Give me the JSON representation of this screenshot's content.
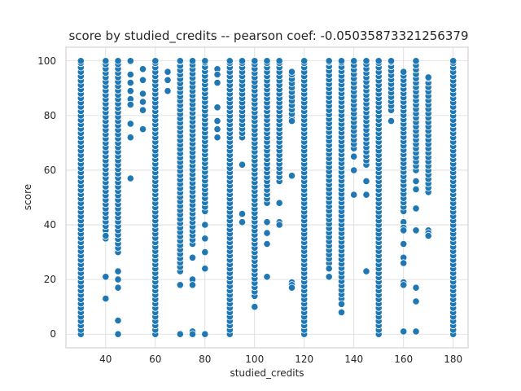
{
  "chart_data": {
    "type": "scatter",
    "title": "score by studied_credits -- pearson coef: -0.05035873321256379",
    "xlabel": "studied_credits",
    "ylabel": "score",
    "xlim": [
      24,
      186
    ],
    "ylim": [
      -5,
      105
    ],
    "xticks": [
      40,
      60,
      80,
      100,
      120,
      140,
      160,
      180
    ],
    "yticks": [
      0,
      20,
      40,
      60,
      80,
      100
    ],
    "grid": true,
    "point_color": "#1f77b4",
    "columns": [
      {
        "x": 30,
        "dense": [
          [
            0,
            100
          ]
        ]
      },
      {
        "x": 40,
        "dense": [
          [
            38,
            100
          ]
        ],
        "points": [
          35,
          36,
          21,
          13
        ]
      },
      {
        "x": 45,
        "dense": [
          [
            30,
            100
          ]
        ],
        "points": [
          23,
          20,
          17,
          5,
          0
        ]
      },
      {
        "x": 50,
        "points": [
          100,
          95,
          92,
          89,
          86,
          84,
          77,
          72,
          57
        ]
      },
      {
        "x": 55,
        "points": [
          97,
          93,
          88,
          85,
          82,
          75
        ]
      },
      {
        "x": 60,
        "dense": [
          [
            0,
            100
          ]
        ]
      },
      {
        "x": 65,
        "points": [
          96,
          93,
          89
        ]
      },
      {
        "x": 70,
        "dense": [
          [
            23,
            100
          ]
        ],
        "points": [
          18,
          0
        ]
      },
      {
        "x": 75,
        "dense": [
          [
            33,
            100
          ]
        ],
        "points": [
          28,
          20,
          18,
          1,
          0
        ]
      },
      {
        "x": 80,
        "dense": [
          [
            45,
            100
          ]
        ],
        "points": [
          40,
          35,
          30,
          24,
          0
        ]
      },
      {
        "x": 85,
        "points": [
          97,
          95,
          92,
          83,
          78,
          75,
          72
        ]
      },
      {
        "x": 90,
        "dense": [
          [
            0,
            100
          ]
        ]
      },
      {
        "x": 95,
        "dense": [
          [
            72,
            100
          ]
        ],
        "points": [
          62,
          44,
          41
        ]
      },
      {
        "x": 100,
        "dense": [
          [
            14,
            100
          ]
        ],
        "points": [
          10
        ]
      },
      {
        "x": 105,
        "dense": [
          [
            48,
            100
          ]
        ],
        "points": [
          41,
          37,
          33,
          21
        ]
      },
      {
        "x": 110,
        "dense": [
          [
            56,
            100
          ]
        ],
        "points": [
          48,
          41,
          40
        ]
      },
      {
        "x": 115,
        "dense": [
          [
            79,
            96
          ]
        ],
        "points": [
          78,
          58,
          19,
          18,
          17
        ]
      },
      {
        "x": 120,
        "dense": [
          [
            0,
            100
          ]
        ]
      },
      {
        "x": 130,
        "dense": [
          [
            26,
            100
          ]
        ],
        "points": [
          24,
          21
        ]
      },
      {
        "x": 135,
        "dense": [
          [
            13,
            100
          ]
        ],
        "points": [
          11,
          8
        ]
      },
      {
        "x": 140,
        "dense": [
          [
            68,
            100
          ]
        ],
        "points": [
          65,
          60,
          51
        ]
      },
      {
        "x": 145,
        "dense": [
          [
            62,
            100
          ]
        ],
        "points": [
          56,
          51,
          23
        ]
      },
      {
        "x": 150,
        "dense": [
          [
            0,
            100
          ]
        ]
      },
      {
        "x": 155,
        "dense": [
          [
            82,
            100
          ]
        ],
        "points": [
          78
        ]
      },
      {
        "x": 160,
        "dense": [
          [
            45,
            96
          ]
        ],
        "points": [
          41,
          39,
          38,
          33,
          28,
          26,
          19,
          18,
          1
        ]
      },
      {
        "x": 165,
        "dense": [
          [
            60,
            100
          ]
        ],
        "points": [
          56,
          53,
          46,
          38,
          17,
          12,
          1
        ]
      },
      {
        "x": 170,
        "dense": [
          [
            52,
            94
          ]
        ],
        "points": [
          38,
          37,
          36
        ]
      },
      {
        "x": 180,
        "dense": [
          [
            0,
            100
          ]
        ]
      }
    ]
  }
}
